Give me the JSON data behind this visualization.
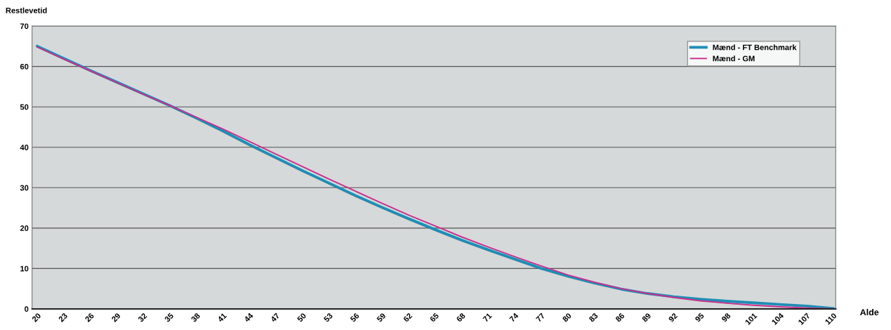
{
  "chart_data": {
    "type": "line",
    "xlabel": "Alde",
    "ylabel": "Restlevetid",
    "categories": [
      "20",
      "23",
      "26",
      "29",
      "32",
      "35",
      "38",
      "41",
      "44",
      "47",
      "50",
      "53",
      "56",
      "59",
      "62",
      "65",
      "68",
      "71",
      "74",
      "77",
      "80",
      "83",
      "86",
      "89",
      "92",
      "95",
      "98",
      "101",
      "104",
      "107",
      "110"
    ],
    "series": [
      {
        "name": "Mænd - FT Benchmark",
        "color": "#1f8db5",
        "values": [
          65.0,
          62.0,
          59.0,
          56.1,
          53.2,
          50.3,
          47.2,
          44.0,
          40.6,
          37.4,
          34.2,
          31.1,
          28.0,
          25.1,
          22.3,
          19.6,
          17.0,
          14.6,
          12.3,
          10.0,
          8.1,
          6.4,
          4.9,
          3.8,
          3.0,
          2.4,
          1.9,
          1.5,
          1.1,
          0.7,
          0.1
        ]
      },
      {
        "name": "Mænd - GM",
        "color": "#c8308c",
        "values": [
          64.8,
          61.8,
          58.9,
          56.0,
          53.1,
          50.3,
          47.4,
          44.5,
          41.4,
          38.3,
          35.2,
          32.1,
          29.1,
          26.1,
          23.2,
          20.5,
          17.8,
          15.3,
          12.9,
          10.6,
          8.4,
          6.6,
          5.0,
          3.8,
          2.8,
          2.0,
          1.4,
          0.9,
          0.5,
          0.2,
          0.0
        ]
      }
    ],
    "ylim": [
      0,
      70
    ],
    "yticks": [
      0,
      10,
      20,
      30,
      40,
      50,
      60,
      70
    ],
    "grid": "y",
    "legend": "top right",
    "marker": "none",
    "line_style": "solid"
  }
}
